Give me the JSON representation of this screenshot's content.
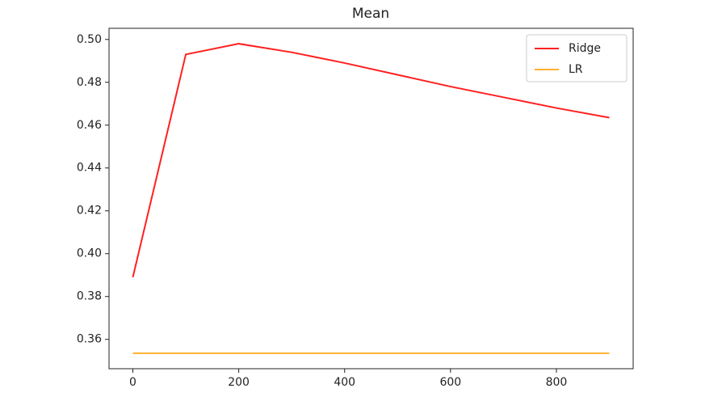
{
  "chart_data": {
    "type": "line",
    "title": "Mean",
    "x": [
      0,
      100,
      200,
      300,
      400,
      500,
      600,
      700,
      800,
      900
    ],
    "series": [
      {
        "name": "Ridge",
        "color": "#ff2020",
        "values": [
          0.389,
          0.493,
          0.498,
          0.494,
          0.489,
          0.4835,
          0.478,
          0.473,
          0.468,
          0.4635
        ]
      },
      {
        "name": "LR",
        "color": "#ffb030",
        "values": [
          0.3535,
          0.3535,
          0.3535,
          0.3535,
          0.3535,
          0.3535,
          0.3535,
          0.3535,
          0.3535,
          0.3535
        ]
      }
    ],
    "xlim": [
      -45,
      945
    ],
    "xticks": [
      0,
      200,
      400,
      600,
      800
    ],
    "ylim": [
      0.3463,
      0.5052
    ],
    "yticks": [
      0.36,
      0.38,
      {
        "value": 0.4,
        "label": "0.40"
      },
      0.42,
      0.44,
      0.46,
      0.48,
      {
        "value": 0.5,
        "label": "0.50"
      }
    ],
    "legend": "upper right"
  }
}
